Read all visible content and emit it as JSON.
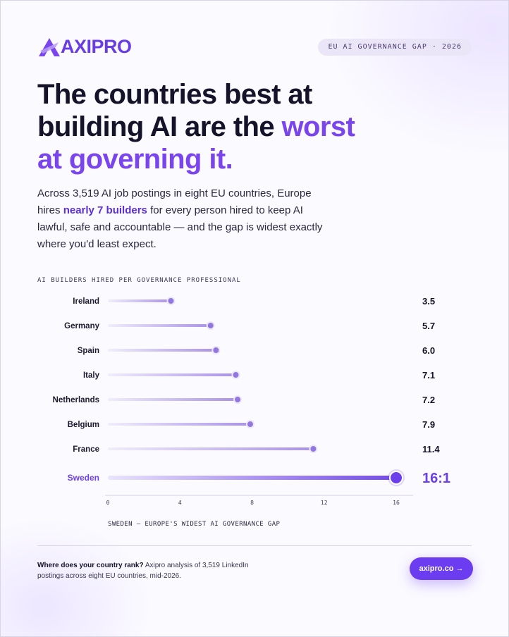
{
  "brand": {
    "name": "AXIPRO",
    "color": "#6a3ce6"
  },
  "tag": "EU AI GOVERNANCE GAP · 2026",
  "headline": {
    "line1": "The countries best at",
    "line2a": "building AI are the ",
    "line2b": "worst",
    "line3": "at governing it."
  },
  "lede": {
    "part1": "Across 3,519 AI job postings in eight EU countries, Europe hires ",
    "highlight": "nearly 7 builders",
    "part2": " for every person hired to keep AI lawful, safe and accountable — and the gap is widest exactly where you'd least expect."
  },
  "chart_data": {
    "type": "bar",
    "title": "AI BUILDERS HIRED PER GOVERNANCE PROFESSIONAL",
    "categories": [
      "Ireland",
      "Germany",
      "Spain",
      "Italy",
      "Netherlands",
      "Belgium",
      "France",
      "Sweden"
    ],
    "values": [
      3.5,
      5.7,
      6.0,
      7.1,
      7.2,
      7.9,
      11.4,
      16
    ],
    "value_labels": [
      "3.5",
      "5.7",
      "6.0",
      "7.1",
      "7.2",
      "7.9",
      "11.4",
      "16:1"
    ],
    "highlight": "Sweden",
    "xlim": [
      0,
      16
    ],
    "xticks": [
      0,
      4,
      8,
      12,
      16
    ],
    "caption": "SWEDEN — EUROPE'S WIDEST AI GOVERNANCE GAP",
    "colors": {
      "bar": "#a48ce6",
      "highlight": "#6b3fea",
      "dot": "#9277e0"
    }
  },
  "footer": {
    "question": "Where does your country rank?",
    "note": " Axipro analysis of 3,519 LinkedIn postings across eight EU countries, mid-2026."
  },
  "cta": {
    "label": "axipro.co →"
  }
}
